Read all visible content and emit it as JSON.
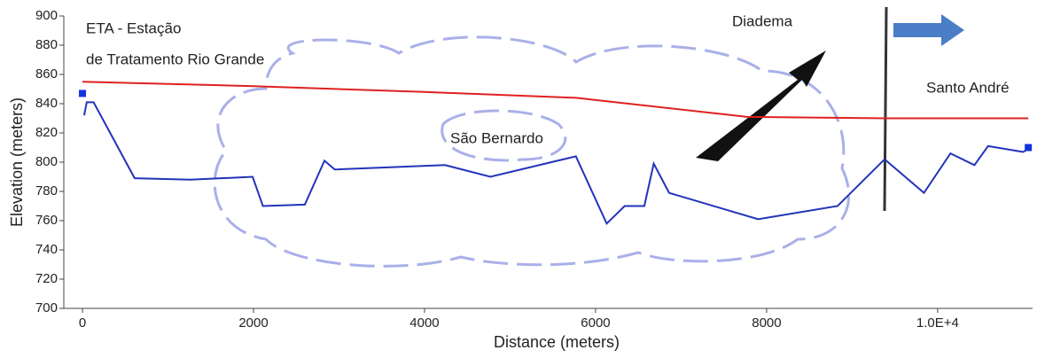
{
  "chart_data": {
    "type": "line",
    "x_label": "Distance (meters)",
    "y_label": "Elevation (meters)",
    "xlim": [
      -218,
      11110
    ],
    "ylim": [
      700,
      900
    ],
    "xticks": [
      0,
      2000,
      4000,
      6000,
      8000,
      {
        "value": 10000,
        "label": "1.0E+4"
      }
    ],
    "yticks": [
      700,
      720,
      740,
      760,
      780,
      800,
      820,
      840,
      860,
      880,
      900
    ],
    "annotations": [
      "ETA - Estação",
      "de Tratamento Rio Grande",
      "Diadema",
      "Santo André",
      "São Bernardo"
    ],
    "series": [
      {
        "color": "#2233bb",
        "x": [
          20,
          50,
          130,
          610,
          1260,
          1990,
          2110,
          2600,
          2830,
          2950,
          4240,
          4770,
          5770,
          6130,
          6340,
          6570,
          6680,
          6860,
          7900,
          8830,
          9380,
          9840,
          10150,
          10430,
          10590,
          11000,
          11060
        ],
        "values": [
          832,
          841,
          841,
          789,
          788,
          790,
          770,
          771,
          801,
          795,
          798,
          790,
          804,
          758,
          770,
          770,
          799,
          779,
          761,
          770,
          802,
          779,
          806,
          798,
          811,
          807,
          809
        ]
      },
      {
        "color": "#e02020",
        "x": [
          0,
          2000,
          4000,
          5770,
          7770,
          9400,
          11060
        ],
        "values": [
          855,
          852,
          848,
          844,
          831,
          830,
          830
        ]
      }
    ],
    "endpoints": {
      "color": "#1133dd",
      "x": [
        0,
        11060
      ],
      "values": [
        847,
        810
      ]
    }
  }
}
